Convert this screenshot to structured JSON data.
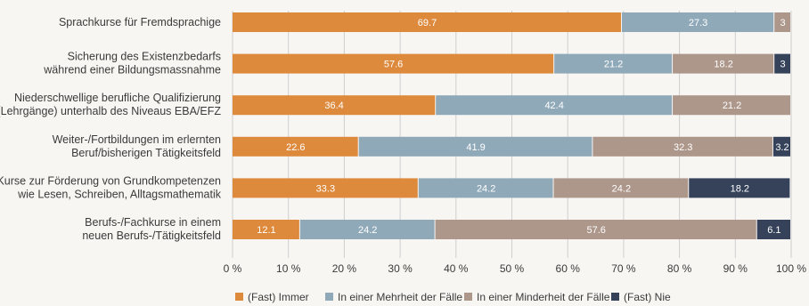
{
  "chart_data": {
    "type": "bar",
    "orientation": "horizontal",
    "stacked": true,
    "categories": [
      [
        "Sprachkurse für Fremdsprachige"
      ],
      [
        "Sicherung des Existenzbedarfs",
        "während einer Bildungsmassnahme"
      ],
      [
        "Niederschwellige berufliche Qualifizierung",
        "(Lehrgänge) unterhalb des Niveaus EBA/EFZ"
      ],
      [
        "Weiter-/Fortbildungen im erlernten",
        "Beruf/bisherigen Tätigkeitsfeld"
      ],
      [
        "Kurse zur Förderung von Grundkompetenzen",
        "wie Lesen, Schreiben, Alltagsmathematik"
      ],
      [
        "Berufs-/Fachkurse in einem",
        "neuen Berufs-/Tätigkeitsfeld"
      ]
    ],
    "series": [
      {
        "name": "(Fast) Immer",
        "color": "#de8a3c",
        "values": [
          69.7,
          57.6,
          36.4,
          22.6,
          33.3,
          12.1
        ],
        "labels": [
          "69.7",
          "57.6",
          "36.4",
          "22.6",
          "33.3",
          "12.1"
        ]
      },
      {
        "name": "In einer Mehrheit der Fälle",
        "color": "#8fa9b9",
        "values": [
          27.3,
          21.2,
          42.4,
          41.9,
          24.2,
          24.2
        ],
        "labels": [
          "27.3",
          "21.2",
          "42.4",
          "41.9",
          "24.2",
          "24.2"
        ]
      },
      {
        "name": "In einer Minderheit der Fälle",
        "color": "#ad968a",
        "values": [
          3,
          18.2,
          21.2,
          32.3,
          24.2,
          57.6
        ],
        "labels": [
          "3",
          "18.2",
          "21.2",
          "32.3",
          "24.2",
          "57.6"
        ]
      },
      {
        "name": "(Fast) Nie",
        "color": "#36425a",
        "values": [
          0,
          3,
          0,
          3.2,
          18.2,
          6.1
        ],
        "labels": [
          "",
          "3",
          "",
          "3.2",
          "18.2",
          "6.1"
        ]
      }
    ],
    "xlim": [
      0,
      100
    ],
    "xticks": [
      "0 %",
      "10 %",
      "20 %",
      "30 %",
      "40 %",
      "50 %",
      "60 %",
      "70 %",
      "80 %",
      "90 %",
      "100 %"
    ],
    "grid": true,
    "legend_position": "bottom"
  }
}
